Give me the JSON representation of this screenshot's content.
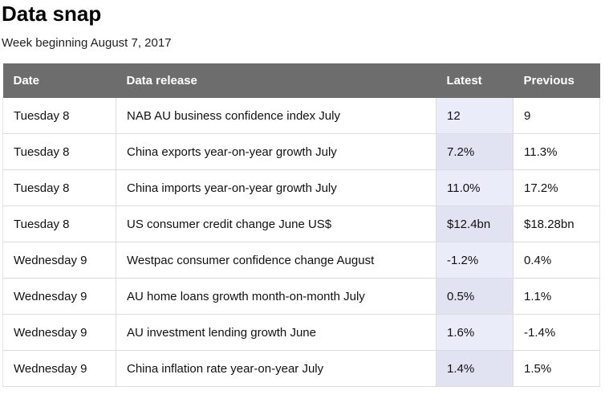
{
  "title": "Data snap",
  "subtitle": "Week beginning August 7, 2017",
  "columns": [
    "Date",
    "Data release",
    "Latest",
    "Previous"
  ],
  "rows": [
    {
      "date": "Tuesday 8",
      "release": "NAB AU business confidence index July",
      "latest": "12",
      "previous": "9"
    },
    {
      "date": "Tuesday 8",
      "release": "China exports year-on-year growth July",
      "latest": "7.2%",
      "previous": "11.3%"
    },
    {
      "date": "Tuesday 8",
      "release": "China imports year-on-year growth July",
      "latest": "11.0%",
      "previous": "17.2%"
    },
    {
      "date": "Tuesday 8",
      "release": "US consumer credit change June US$",
      "latest": "$12.4bn",
      "previous": "$18.28bn"
    },
    {
      "date": "Wednesday 9",
      "release": "Westpac consumer confidence change August",
      "latest": "-1.2%",
      "previous": "0.4%"
    },
    {
      "date": "Wednesday 9",
      "release": "AU home loans growth month-on-month July",
      "latest": "0.5%",
      "previous": "1.1%"
    },
    {
      "date": "Wednesday 9",
      "release": "AU investment lending growth June",
      "latest": "1.6%",
      "previous": "-1.4%"
    },
    {
      "date": "Wednesday 9",
      "release": "China inflation rate year-on-year July",
      "latest": "1.4%",
      "previous": "1.5%"
    }
  ],
  "colors": {
    "header_bg": "#6d6d6d",
    "latest_bg": "#eaecf9"
  }
}
